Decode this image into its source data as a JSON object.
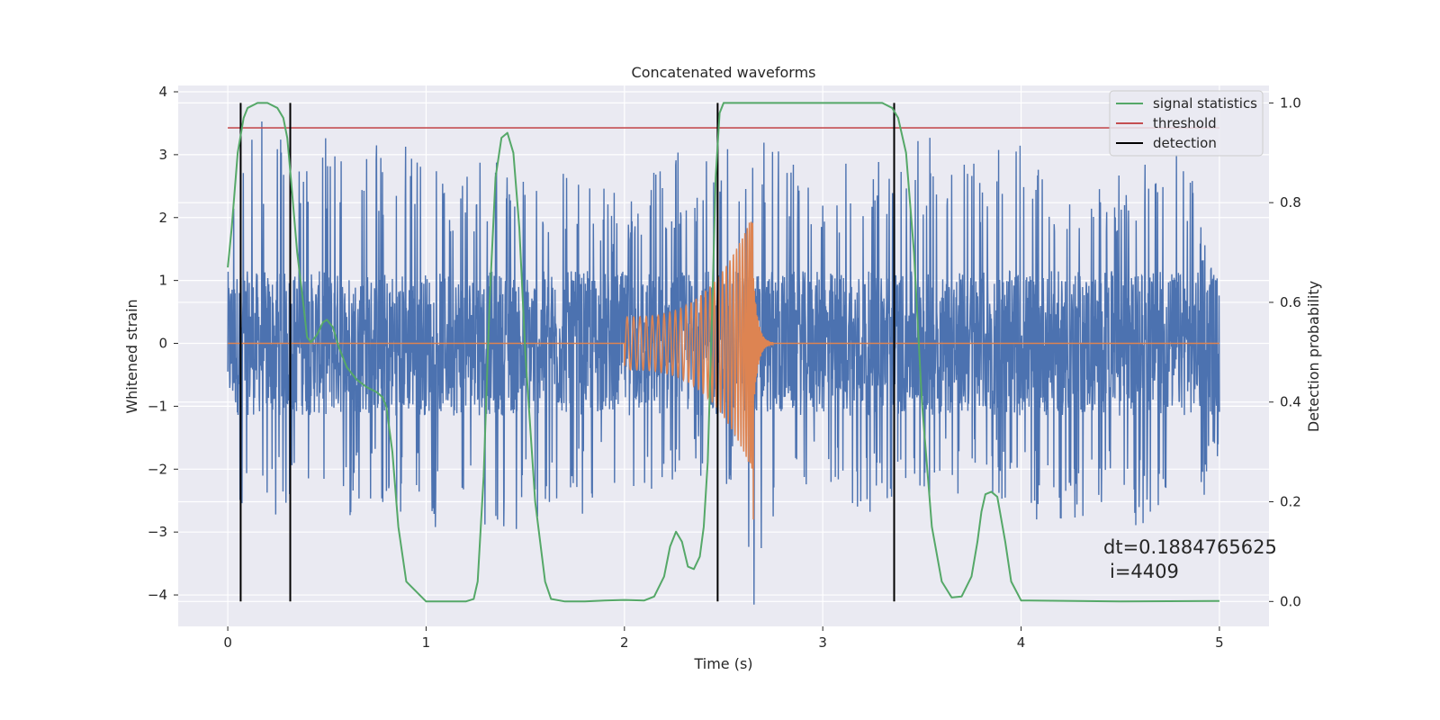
{
  "chart_data": {
    "type": "line",
    "title": "Concatenated waveforms",
    "xlabel": "Time (s)",
    "ylabel": "Whitened strain",
    "y2label": "Detection probability",
    "xlim": [
      -0.25,
      5.25
    ],
    "ylim": [
      -4.5,
      4.1
    ],
    "y2lim": [
      -0.05,
      1.035
    ],
    "xticks": [
      0,
      1,
      2,
      3,
      4,
      5
    ],
    "yticks": [
      -4,
      -3,
      -2,
      -1,
      0,
      1,
      2,
      3,
      4
    ],
    "y2ticks": [
      0.0,
      0.2,
      0.4,
      0.6,
      0.8,
      1.0
    ],
    "xtick_labels": [
      "0",
      "1",
      "2",
      "3",
      "4",
      "5"
    ],
    "ytick_labels": [
      "−4",
      "−3",
      "−2",
      "−1",
      "0",
      "1",
      "2",
      "3",
      "4"
    ],
    "y2tick_labels": [
      "0.0",
      "0.2",
      "0.4",
      "0.6",
      "0.8",
      "1.0"
    ],
    "grid": true,
    "legend_position": "top-right",
    "legend": [
      "signal statistics",
      "threshold",
      "detection"
    ],
    "colors": {
      "strain": "#4c72b0",
      "injection": "#dd8452",
      "signal_statistics": "#55a868",
      "threshold": "#c44e52",
      "detection": "#000000",
      "background": "#eaeaf2",
      "grid": "#ffffff"
    },
    "series": [
      {
        "name": "signal statistics",
        "axis": "right",
        "x": [
          0.0,
          0.02,
          0.05,
          0.08,
          0.1,
          0.15,
          0.2,
          0.25,
          0.28,
          0.3,
          0.32,
          0.35,
          0.38,
          0.4,
          0.42,
          0.45,
          0.48,
          0.5,
          0.53,
          0.56,
          0.6,
          0.65,
          0.7,
          0.75,
          0.78,
          0.8,
          0.83,
          0.86,
          0.9,
          1.0,
          1.1,
          1.2,
          1.24,
          1.26,
          1.29,
          1.32,
          1.35,
          1.38,
          1.41,
          1.44,
          1.47,
          1.5,
          1.55,
          1.6,
          1.63,
          1.7,
          1.8,
          1.9,
          2.0,
          2.1,
          2.15,
          2.2,
          2.23,
          2.26,
          2.29,
          2.32,
          2.35,
          2.38,
          2.4,
          2.42,
          2.44,
          2.46,
          2.48,
          2.5,
          2.6,
          3.0,
          3.3,
          3.35,
          3.38,
          3.42,
          3.46,
          3.5,
          3.55,
          3.6,
          3.65,
          3.7,
          3.75,
          3.78,
          3.8,
          3.82,
          3.85,
          3.88,
          3.92,
          3.95,
          4.0,
          4.5,
          5.0
        ],
        "values": [
          0.67,
          0.75,
          0.9,
          0.97,
          0.99,
          1.0,
          1.0,
          0.99,
          0.97,
          0.93,
          0.84,
          0.7,
          0.6,
          0.53,
          0.52,
          0.535,
          0.56,
          0.565,
          0.55,
          0.51,
          0.47,
          0.445,
          0.43,
          0.42,
          0.41,
          0.39,
          0.3,
          0.15,
          0.04,
          0.0,
          0.0,
          0.0,
          0.005,
          0.04,
          0.25,
          0.6,
          0.85,
          0.93,
          0.94,
          0.9,
          0.75,
          0.5,
          0.2,
          0.04,
          0.005,
          0.0,
          0.0,
          0.002,
          0.003,
          0.002,
          0.01,
          0.05,
          0.11,
          0.14,
          0.12,
          0.07,
          0.065,
          0.09,
          0.15,
          0.28,
          0.55,
          0.85,
          0.98,
          1.0,
          1.0,
          1.0,
          1.0,
          0.99,
          0.97,
          0.9,
          0.7,
          0.4,
          0.15,
          0.04,
          0.008,
          0.01,
          0.05,
          0.12,
          0.18,
          0.215,
          0.22,
          0.21,
          0.12,
          0.04,
          0.002,
          0.0,
          0.001
        ]
      },
      {
        "name": "threshold",
        "axis": "right",
        "x": [
          0.0,
          5.0
        ],
        "values": [
          0.95,
          0.95
        ]
      }
    ],
    "detections": [
      0.065,
      0.315,
      2.47,
      3.36
    ],
    "strain": {
      "x_range": [
        0.0,
        5.0
      ],
      "envelope": [
        [
          0.0,
          -3.4,
          2.3
        ],
        [
          0.1,
          -2.8,
          3.7
        ],
        [
          0.3,
          -2.7,
          3.5
        ],
        [
          0.5,
          -3.0,
          3.3
        ],
        [
          0.7,
          -2.7,
          3.2
        ],
        [
          1.0,
          -2.8,
          3.2
        ],
        [
          1.1,
          -3.2,
          2.6
        ],
        [
          1.3,
          -3.2,
          3.1
        ],
        [
          1.5,
          -2.9,
          2.6
        ],
        [
          1.7,
          -2.9,
          2.9
        ],
        [
          2.0,
          -2.4,
          2.3
        ],
        [
          2.3,
          -2.4,
          3.2
        ],
        [
          2.55,
          -2.3,
          3.3
        ],
        [
          2.65,
          -4.3,
          3.4
        ],
        [
          2.8,
          -2.6,
          3.2
        ],
        [
          3.0,
          -2.5,
          2.7
        ],
        [
          3.3,
          -2.9,
          3.3
        ],
        [
          3.5,
          -2.6,
          3.3
        ],
        [
          3.8,
          -2.4,
          3.2
        ],
        [
          4.0,
          -2.8,
          3.2
        ],
        [
          4.3,
          -2.8,
          2.4
        ],
        [
          4.6,
          -2.9,
          3.2
        ],
        [
          4.8,
          -3.0,
          3.2
        ],
        [
          5.0,
          -2.2,
          1.3
        ]
      ]
    },
    "injection": {
      "start": 2.0,
      "merger": 2.65,
      "end": 2.75,
      "start_amplitude": 0.42,
      "peak_amplitude": 2.1,
      "trough_at_merger": -2.8
    },
    "annotation": [
      "dt=0.1884765625",
      "i=4409"
    ]
  }
}
